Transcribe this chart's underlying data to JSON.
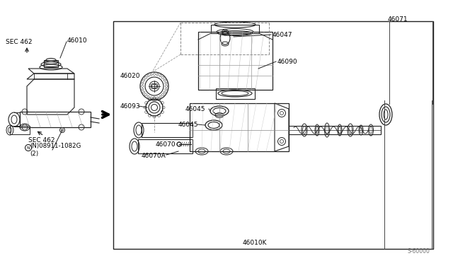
{
  "bg_color": "#ffffff",
  "line_color": "#222222",
  "fig_width": 6.4,
  "fig_height": 3.72,
  "dpi": 100,
  "watermark": "S-60000",
  "labels": {
    "SEC_462_top": "SEC 462",
    "label_46010": "46010",
    "SEC_462_bottom": "SEC 462",
    "nut_label": "(N)08911-1082G\n(2)",
    "l46020": "46020",
    "l46047": "46047",
    "l46090": "46090",
    "l46071": "46071",
    "l46093": "46093",
    "l46045a": "46045",
    "l46045b": "46045",
    "l46070": "46070",
    "l46070a": "46070A",
    "l46010k": "46010K"
  }
}
